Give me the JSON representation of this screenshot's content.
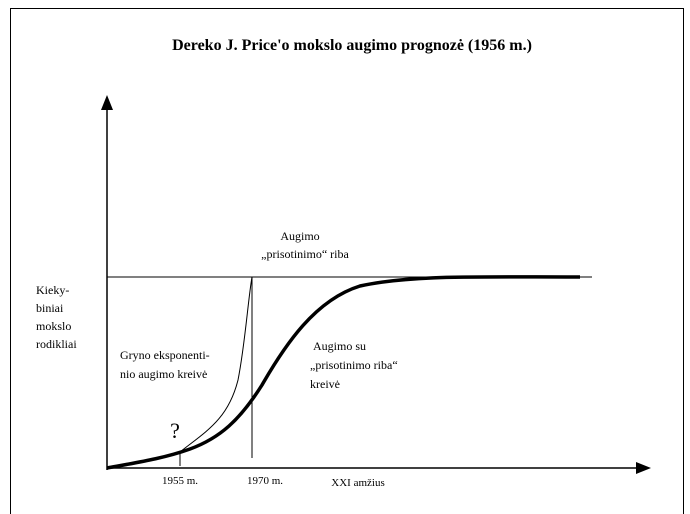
{
  "title": "Dereko J. Price'o mokslo augimo prognozė (1956 m.)",
  "y_axis_label": [
    "Kieky-",
    "biniai",
    "mokslo",
    "rodikliai"
  ],
  "x_labels": [
    "1955 m.",
    "1970 m.",
    "XXI amžius"
  ],
  "limit_label": [
    "Augimo",
    "„prisotinimo“ riba"
  ],
  "exponential_label": [
    "Gryno eksponenti-",
    "nio augimo kreivė"
  ],
  "logistic_label": [
    "Augimo su",
    "„prisotinimo riba“",
    "kreivė"
  ],
  "question_mark": "?"
}
